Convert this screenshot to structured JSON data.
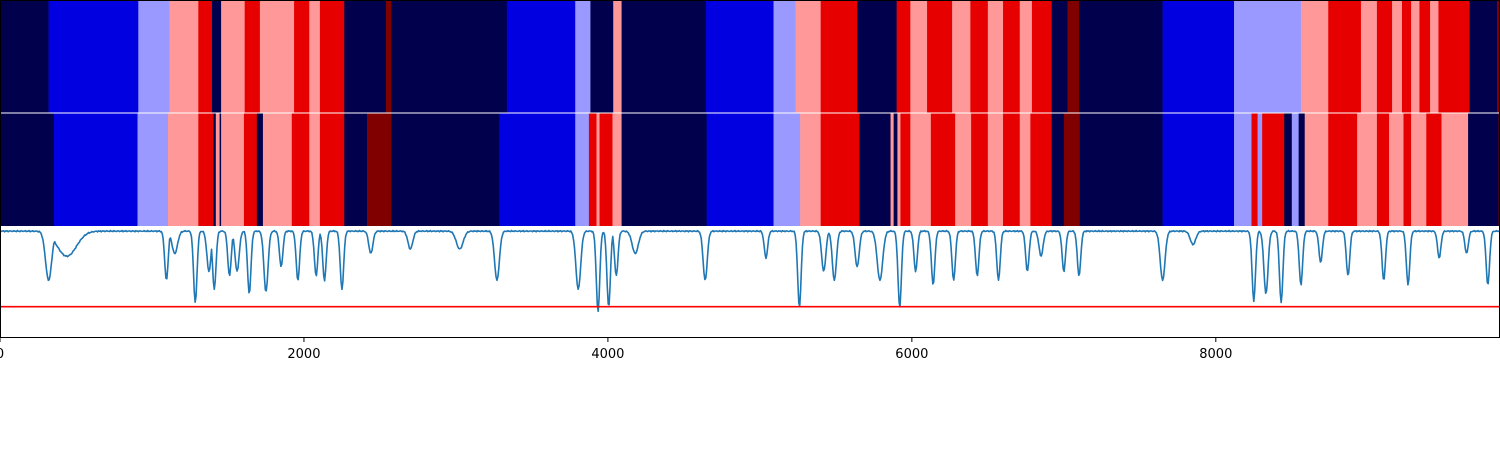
{
  "chart_data": {
    "type": "heatmap",
    "title": "",
    "xlabel": "",
    "ylabel": "",
    "xlim": [
      0,
      9870
    ],
    "x_ticks": [
      {
        "value": 0,
        "label": "0"
      },
      {
        "value": 2000,
        "label": "2000"
      },
      {
        "value": 4000,
        "label": "4000"
      },
      {
        "value": 6000,
        "label": "6000"
      },
      {
        "value": 8000,
        "label": "8000"
      }
    ],
    "state_colors": {
      "0": "#00004c",
      "1": "#0000e0",
      "2": "#9999ff",
      "3": "#ff9999",
      "4": "#e60000",
      "5": "#800000"
    },
    "tracks": [
      {
        "segments": [
          [
            0,
            320,
            0
          ],
          [
            320,
            910,
            1
          ],
          [
            910,
            1115,
            2
          ],
          [
            1115,
            1305,
            3
          ],
          [
            1305,
            1395,
            4
          ],
          [
            1395,
            1455,
            0
          ],
          [
            1455,
            1610,
            3
          ],
          [
            1610,
            1710,
            4
          ],
          [
            1710,
            1935,
            3
          ],
          [
            1935,
            2035,
            4
          ],
          [
            2035,
            2105,
            3
          ],
          [
            2105,
            2265,
            4
          ],
          [
            2265,
            2540,
            0
          ],
          [
            2540,
            2575,
            5
          ],
          [
            2575,
            3335,
            0
          ],
          [
            3335,
            3785,
            1
          ],
          [
            3785,
            3885,
            2
          ],
          [
            3885,
            4035,
            0
          ],
          [
            4035,
            4090,
            3
          ],
          [
            4090,
            4645,
            0
          ],
          [
            4645,
            5090,
            1
          ],
          [
            5090,
            5235,
            2
          ],
          [
            5235,
            5400,
            3
          ],
          [
            5400,
            5640,
            4
          ],
          [
            5640,
            5900,
            0
          ],
          [
            5900,
            5990,
            4
          ],
          [
            5990,
            6100,
            3
          ],
          [
            6100,
            6265,
            4
          ],
          [
            6265,
            6385,
            3
          ],
          [
            6385,
            6500,
            4
          ],
          [
            6500,
            6600,
            3
          ],
          [
            6600,
            6710,
            4
          ],
          [
            6710,
            6790,
            3
          ],
          [
            6790,
            6920,
            4
          ],
          [
            6920,
            7025,
            0
          ],
          [
            7025,
            7100,
            5
          ],
          [
            7100,
            7650,
            0
          ],
          [
            7650,
            8120,
            1
          ],
          [
            8120,
            8560,
            2
          ],
          [
            8560,
            8740,
            3
          ],
          [
            8740,
            8955,
            4
          ],
          [
            8955,
            9060,
            3
          ],
          [
            9060,
            9160,
            4
          ],
          [
            9160,
            9225,
            3
          ],
          [
            9225,
            9285,
            4
          ],
          [
            9285,
            9340,
            3
          ],
          [
            9340,
            9410,
            4
          ],
          [
            9410,
            9465,
            3
          ],
          [
            9465,
            9670,
            4
          ],
          [
            9670,
            9850,
            0
          ],
          [
            9850,
            9900,
            5
          ],
          [
            9900,
            9870,
            0
          ]
        ]
      },
      {
        "segments": [
          [
            0,
            355,
            0
          ],
          [
            355,
            905,
            1
          ],
          [
            905,
            1105,
            2
          ],
          [
            1105,
            1305,
            3
          ],
          [
            1305,
            1405,
            4
          ],
          [
            1405,
            1420,
            0
          ],
          [
            1420,
            1445,
            3
          ],
          [
            1445,
            1455,
            0
          ],
          [
            1455,
            1605,
            3
          ],
          [
            1605,
            1690,
            4
          ],
          [
            1690,
            1730,
            0
          ],
          [
            1730,
            1920,
            3
          ],
          [
            1920,
            1935,
            4
          ],
          [
            1935,
            2035,
            4
          ],
          [
            2035,
            2105,
            3
          ],
          [
            2105,
            2265,
            4
          ],
          [
            2265,
            2415,
            0
          ],
          [
            2415,
            2575,
            5
          ],
          [
            2575,
            3285,
            0
          ],
          [
            3285,
            3785,
            1
          ],
          [
            3785,
            3875,
            2
          ],
          [
            3875,
            3925,
            4
          ],
          [
            3925,
            3945,
            3
          ],
          [
            3945,
            4030,
            4
          ],
          [
            4030,
            4090,
            3
          ],
          [
            4090,
            4650,
            0
          ],
          [
            4650,
            5090,
            1
          ],
          [
            5090,
            5265,
            2
          ],
          [
            5265,
            5400,
            3
          ],
          [
            5400,
            5655,
            4
          ],
          [
            5655,
            5860,
            0
          ],
          [
            5860,
            5880,
            3
          ],
          [
            5880,
            5905,
            0
          ],
          [
            5905,
            5925,
            3
          ],
          [
            5925,
            5990,
            4
          ],
          [
            5990,
            6125,
            3
          ],
          [
            6125,
            6285,
            4
          ],
          [
            6285,
            6390,
            3
          ],
          [
            6390,
            6500,
            4
          ],
          [
            6500,
            6600,
            3
          ],
          [
            6600,
            6710,
            4
          ],
          [
            6710,
            6780,
            3
          ],
          [
            6780,
            6920,
            4
          ],
          [
            6920,
            7000,
            0
          ],
          [
            7000,
            7105,
            5
          ],
          [
            7105,
            7650,
            0
          ],
          [
            7650,
            8120,
            1
          ],
          [
            8120,
            8235,
            2
          ],
          [
            8235,
            8275,
            4
          ],
          [
            8275,
            8305,
            2
          ],
          [
            8305,
            8450,
            4
          ],
          [
            8450,
            8500,
            0
          ],
          [
            8500,
            8545,
            2
          ],
          [
            8545,
            8585,
            0
          ],
          [
            8585,
            8740,
            3
          ],
          [
            8740,
            8930,
            4
          ],
          [
            8930,
            9060,
            3
          ],
          [
            9060,
            9140,
            4
          ],
          [
            9140,
            9235,
            3
          ],
          [
            9235,
            9285,
            4
          ],
          [
            9285,
            9385,
            3
          ],
          [
            9385,
            9485,
            4
          ],
          [
            9485,
            9660,
            3
          ],
          [
            9660,
            9860,
            0
          ],
          [
            9860,
            9900,
            5
          ],
          [
            9900,
            9870,
            0
          ]
        ]
      }
    ],
    "line_series": {
      "color": "#1f77b4",
      "baseline": 0.0,
      "ylim": [
        -1.2,
        0.05
      ],
      "threshold": {
        "value": -0.85,
        "color": "#ff0000"
      },
      "dips": [
        [
          320,
          45,
          -0.55
        ],
        [
          440,
          140,
          -0.28
        ],
        [
          1095,
          25,
          -0.55
        ],
        [
          1150,
          40,
          -0.25
        ],
        [
          1285,
          25,
          -0.8
        ],
        [
          1375,
          30,
          -0.45
        ],
        [
          1410,
          25,
          -0.65
        ],
        [
          1510,
          25,
          -0.5
        ],
        [
          1560,
          30,
          -0.45
        ],
        [
          1640,
          25,
          -0.7
        ],
        [
          1750,
          30,
          -0.68
        ],
        [
          1850,
          25,
          -0.4
        ],
        [
          1960,
          25,
          -0.55
        ],
        [
          2080,
          25,
          -0.5
        ],
        [
          2135,
          25,
          -0.55
        ],
        [
          2250,
          25,
          -0.65
        ],
        [
          2440,
          30,
          -0.25
        ],
        [
          2700,
          35,
          -0.2
        ],
        [
          3025,
          50,
          -0.2
        ],
        [
          3270,
          35,
          -0.55
        ],
        [
          3805,
          35,
          -0.65
        ],
        [
          3935,
          25,
          -0.9
        ],
        [
          4005,
          25,
          -0.85
        ],
        [
          4055,
          25,
          -0.5
        ],
        [
          4180,
          45,
          -0.25
        ],
        [
          4640,
          30,
          -0.55
        ],
        [
          5040,
          25,
          -0.3
        ],
        [
          5260,
          25,
          -0.85
        ],
        [
          5420,
          30,
          -0.45
        ],
        [
          5490,
          30,
          -0.55
        ],
        [
          5640,
          30,
          -0.4
        ],
        [
          5790,
          40,
          -0.55
        ],
        [
          5920,
          25,
          -0.85
        ],
        [
          6025,
          25,
          -0.45
        ],
        [
          6140,
          25,
          -0.6
        ],
        [
          6275,
          25,
          -0.55
        ],
        [
          6430,
          25,
          -0.5
        ],
        [
          6570,
          25,
          -0.55
        ],
        [
          6760,
          25,
          -0.45
        ],
        [
          6850,
          30,
          -0.28
        ],
        [
          7000,
          25,
          -0.45
        ],
        [
          7100,
          25,
          -0.5
        ],
        [
          7650,
          35,
          -0.55
        ],
        [
          7850,
          40,
          -0.15
        ],
        [
          8250,
          25,
          -0.78
        ],
        [
          8330,
          30,
          -0.7
        ],
        [
          8430,
          25,
          -0.8
        ],
        [
          8560,
          25,
          -0.6
        ],
        [
          8690,
          25,
          -0.35
        ],
        [
          8870,
          25,
          -0.5
        ],
        [
          9105,
          25,
          -0.55
        ],
        [
          9265,
          25,
          -0.6
        ],
        [
          9470,
          25,
          -0.3
        ],
        [
          9650,
          25,
          -0.25
        ],
        [
          9790,
          25,
          -0.6
        ]
      ]
    }
  }
}
